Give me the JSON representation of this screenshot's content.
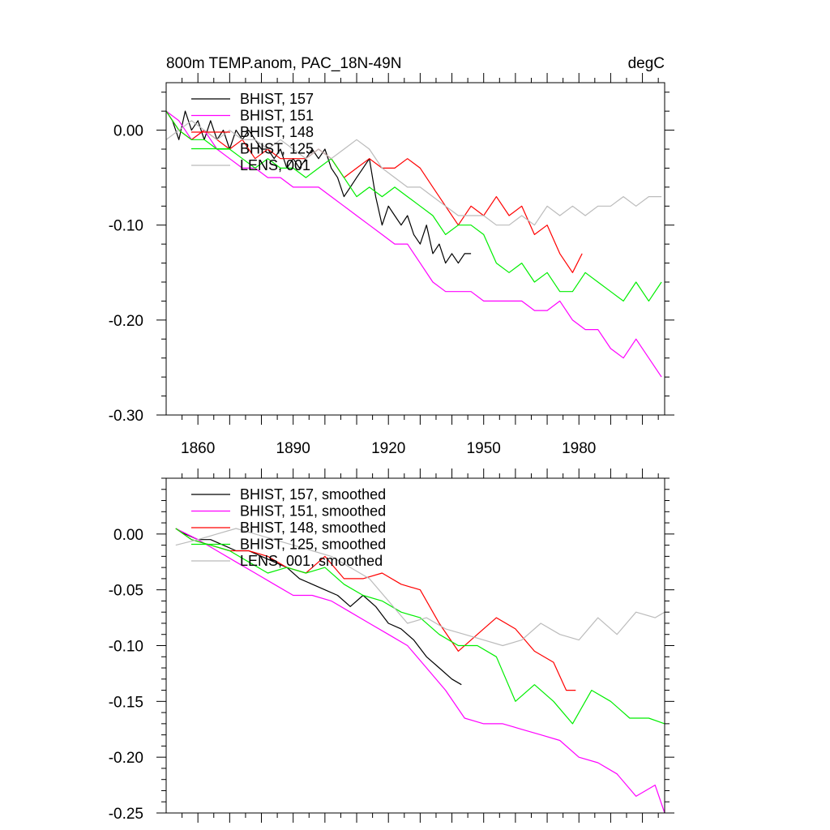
{
  "chart_data": [
    {
      "type": "line",
      "title": "800m TEMP.anom, PAC_18N-49N",
      "units": "degC",
      "xlim": [
        1850,
        2007
      ],
      "ylim": [
        -0.3,
        0.05
      ],
      "yticks": [
        0.0,
        -0.1,
        -0.2,
        -0.3
      ],
      "ytick_labels": [
        "0.00",
        "-0.10",
        "-0.20",
        "-0.30"
      ],
      "xticks": [
        1860,
        1890,
        1920,
        1950,
        1980
      ],
      "xtick_labels": [
        "1860",
        "1890",
        "1920",
        "1950",
        "1980"
      ],
      "legend": "top-left",
      "grid": false,
      "series": [
        {
          "name": "BHIST, 157",
          "color": "#000000",
          "x": [
            1850,
            1852,
            1854,
            1856,
            1858,
            1860,
            1862,
            1864,
            1866,
            1868,
            1870,
            1872,
            1874,
            1876,
            1878,
            1880,
            1882,
            1884,
            1886,
            1888,
            1890,
            1892,
            1894,
            1896,
            1898,
            1900,
            1902,
            1904,
            1906,
            1908,
            1910,
            1912,
            1914,
            1916,
            1918,
            1920,
            1922,
            1924,
            1926,
            1928,
            1930,
            1932,
            1934,
            1936,
            1938,
            1940,
            1942,
            1944,
            1946
          ],
          "y": [
            0.02,
            0.01,
            -0.01,
            0.02,
            0.0,
            0.01,
            -0.01,
            0.01,
            -0.01,
            0.0,
            -0.02,
            0.0,
            -0.01,
            0.0,
            -0.01,
            -0.02,
            -0.02,
            -0.03,
            -0.02,
            -0.04,
            -0.03,
            -0.04,
            -0.03,
            -0.02,
            -0.03,
            -0.02,
            -0.04,
            -0.05,
            -0.07,
            -0.06,
            -0.05,
            -0.04,
            -0.03,
            -0.07,
            -0.1,
            -0.08,
            -0.09,
            -0.1,
            -0.09,
            -0.11,
            -0.12,
            -0.1,
            -0.13,
            -0.12,
            -0.14,
            -0.13,
            -0.14,
            -0.13,
            -0.13
          ]
        },
        {
          "name": "BHIST, 151",
          "color": "#ff00ff",
          "x": [
            1850,
            1854,
            1858,
            1862,
            1866,
            1870,
            1874,
            1878,
            1882,
            1886,
            1890,
            1894,
            1898,
            1902,
            1906,
            1910,
            1914,
            1918,
            1922,
            1926,
            1930,
            1934,
            1938,
            1942,
            1946,
            1950,
            1954,
            1958,
            1962,
            1966,
            1970,
            1974,
            1978,
            1982,
            1986,
            1990,
            1994,
            1998,
            2002,
            2006
          ],
          "y": [
            0.02,
            0.01,
            -0.01,
            0.0,
            -0.02,
            -0.03,
            -0.04,
            -0.04,
            -0.05,
            -0.05,
            -0.06,
            -0.06,
            -0.06,
            -0.07,
            -0.08,
            -0.09,
            -0.1,
            -0.11,
            -0.12,
            -0.12,
            -0.14,
            -0.16,
            -0.17,
            -0.17,
            -0.17,
            -0.18,
            -0.18,
            -0.18,
            -0.18,
            -0.19,
            -0.19,
            -0.18,
            -0.2,
            -0.21,
            -0.21,
            -0.23,
            -0.24,
            -0.22,
            -0.24,
            -0.26
          ]
        },
        {
          "name": "BHIST, 148",
          "color": "#ff0000",
          "x": [
            1850,
            1854,
            1858,
            1862,
            1866,
            1870,
            1874,
            1878,
            1882,
            1886,
            1890,
            1894,
            1898,
            1902,
            1906,
            1910,
            1914,
            1918,
            1922,
            1926,
            1930,
            1934,
            1938,
            1942,
            1946,
            1950,
            1954,
            1958,
            1962,
            1966,
            1970,
            1974,
            1978,
            1981
          ],
          "y": [
            0.02,
            0.0,
            -0.01,
            0.0,
            -0.01,
            -0.02,
            -0.01,
            -0.03,
            -0.02,
            -0.03,
            -0.03,
            -0.03,
            -0.02,
            -0.03,
            -0.05,
            -0.04,
            -0.03,
            -0.04,
            -0.04,
            -0.03,
            -0.04,
            -0.06,
            -0.08,
            -0.1,
            -0.08,
            -0.09,
            -0.07,
            -0.09,
            -0.08,
            -0.11,
            -0.1,
            -0.13,
            -0.15,
            -0.13
          ]
        },
        {
          "name": "BHIST, 125",
          "color": "#00ee00",
          "x": [
            1850,
            1854,
            1858,
            1862,
            1866,
            1870,
            1874,
            1878,
            1882,
            1886,
            1890,
            1894,
            1898,
            1902,
            1906,
            1910,
            1914,
            1918,
            1922,
            1926,
            1930,
            1934,
            1938,
            1942,
            1946,
            1950,
            1954,
            1958,
            1962,
            1966,
            1970,
            1974,
            1978,
            1982,
            1986,
            1990,
            1994,
            1998,
            2002,
            2006
          ],
          "y": [
            0.02,
            0.0,
            -0.01,
            -0.01,
            -0.02,
            -0.02,
            -0.03,
            -0.04,
            -0.03,
            -0.04,
            -0.04,
            -0.05,
            -0.04,
            -0.03,
            -0.05,
            -0.07,
            -0.06,
            -0.07,
            -0.06,
            -0.07,
            -0.08,
            -0.09,
            -0.11,
            -0.1,
            -0.1,
            -0.11,
            -0.14,
            -0.15,
            -0.14,
            -0.16,
            -0.15,
            -0.17,
            -0.17,
            -0.15,
            -0.16,
            -0.17,
            -0.18,
            -0.16,
            -0.18,
            -0.16
          ]
        },
        {
          "name": "LENS, 001",
          "color": "#bbbbbb",
          "x": [
            1850,
            1854,
            1858,
            1862,
            1866,
            1870,
            1874,
            1878,
            1882,
            1886,
            1890,
            1894,
            1898,
            1902,
            1906,
            1910,
            1914,
            1918,
            1922,
            1926,
            1930,
            1934,
            1938,
            1942,
            1946,
            1950,
            1954,
            1958,
            1962,
            1966,
            1970,
            1974,
            1978,
            1982,
            1986,
            1990,
            1994,
            1998,
            2002,
            2006
          ],
          "y": [
            -0.01,
            0.0,
            0.01,
            0.0,
            -0.01,
            0.0,
            -0.01,
            -0.01,
            -0.02,
            -0.01,
            -0.02,
            -0.03,
            -0.02,
            -0.03,
            -0.02,
            -0.01,
            -0.02,
            -0.04,
            -0.05,
            -0.06,
            -0.06,
            -0.07,
            -0.08,
            -0.09,
            -0.09,
            -0.09,
            -0.1,
            -0.1,
            -0.09,
            -0.1,
            -0.08,
            -0.09,
            -0.08,
            -0.09,
            -0.08,
            -0.08,
            -0.07,
            -0.08,
            -0.07,
            -0.07
          ]
        }
      ]
    },
    {
      "type": "line",
      "xlim": [
        1850,
        2007
      ],
      "ylim": [
        -0.25,
        0.05
      ],
      "yticks": [
        0.0,
        -0.05,
        -0.1,
        -0.15,
        -0.2,
        -0.25
      ],
      "ytick_labels": [
        "0.00",
        "-0.05",
        "-0.10",
        "-0.15",
        "-0.20",
        "-0.25"
      ],
      "legend": "top-left",
      "grid": false,
      "series": [
        {
          "name": "BHIST, 157, smoothed",
          "color": "#000000",
          "x": [
            1853,
            1856,
            1860,
            1864,
            1868,
            1872,
            1876,
            1880,
            1884,
            1888,
            1892,
            1896,
            1900,
            1904,
            1908,
            1912,
            1916,
            1920,
            1924,
            1928,
            1932,
            1936,
            1940,
            1943
          ],
          "y": [
            0.005,
            0.0,
            -0.005,
            -0.005,
            -0.01,
            -0.015,
            -0.015,
            -0.02,
            -0.025,
            -0.03,
            -0.04,
            -0.045,
            -0.05,
            -0.055,
            -0.065,
            -0.055,
            -0.065,
            -0.08,
            -0.085,
            -0.095,
            -0.11,
            -0.12,
            -0.13,
            -0.135
          ]
        },
        {
          "name": "BHIST, 151, smoothed",
          "color": "#ff00ff",
          "x": [
            1853,
            1860,
            1866,
            1872,
            1878,
            1884,
            1890,
            1896,
            1902,
            1908,
            1914,
            1920,
            1926,
            1932,
            1938,
            1944,
            1950,
            1956,
            1962,
            1968,
            1974,
            1980,
            1986,
            1992,
            1998,
            2004,
            2007
          ],
          "y": [
            0.005,
            -0.005,
            -0.015,
            -0.025,
            -0.035,
            -0.045,
            -0.055,
            -0.055,
            -0.06,
            -0.07,
            -0.08,
            -0.09,
            -0.1,
            -0.12,
            -0.14,
            -0.165,
            -0.17,
            -0.17,
            -0.175,
            -0.18,
            -0.185,
            -0.2,
            -0.205,
            -0.215,
            -0.235,
            -0.225,
            -0.25
          ]
        },
        {
          "name": "BHIST, 148, smoothed",
          "color": "#ff0000",
          "x": [
            1853,
            1858,
            1864,
            1870,
            1876,
            1882,
            1888,
            1894,
            1900,
            1906,
            1912,
            1918,
            1924,
            1930,
            1936,
            1942,
            1948,
            1954,
            1960,
            1966,
            1972,
            1976,
            1979
          ],
          "y": [
            0.005,
            -0.005,
            -0.01,
            -0.015,
            -0.015,
            -0.02,
            -0.03,
            -0.035,
            -0.02,
            -0.04,
            -0.04,
            -0.035,
            -0.045,
            -0.05,
            -0.08,
            -0.105,
            -0.09,
            -0.075,
            -0.085,
            -0.105,
            -0.115,
            -0.14,
            -0.14
          ]
        },
        {
          "name": "BHIST, 125, smoothed",
          "color": "#00ee00",
          "x": [
            1853,
            1858,
            1864,
            1870,
            1876,
            1882,
            1888,
            1894,
            1900,
            1906,
            1912,
            1918,
            1924,
            1930,
            1936,
            1942,
            1948,
            1954,
            1960,
            1966,
            1972,
            1978,
            1984,
            1990,
            1996,
            2002,
            2007
          ],
          "y": [
            0.005,
            -0.005,
            -0.01,
            -0.015,
            -0.025,
            -0.035,
            -0.03,
            -0.035,
            -0.03,
            -0.045,
            -0.055,
            -0.06,
            -0.07,
            -0.075,
            -0.09,
            -0.1,
            -0.1,
            -0.11,
            -0.15,
            -0.135,
            -0.15,
            -0.17,
            -0.14,
            -0.15,
            -0.165,
            -0.165,
            -0.17
          ]
        },
        {
          "name": "LENS, 001, smoothed",
          "color": "#bbbbbb",
          "x": [
            1853,
            1860,
            1866,
            1872,
            1878,
            1884,
            1890,
            1896,
            1902,
            1908,
            1914,
            1920,
            1926,
            1932,
            1938,
            1944,
            1950,
            1956,
            1962,
            1968,
            1974,
            1980,
            1986,
            1992,
            1998,
            2004,
            2007
          ],
          "y": [
            -0.01,
            -0.005,
            0.0,
            0.005,
            0.0,
            -0.005,
            -0.01,
            -0.015,
            -0.02,
            -0.03,
            -0.04,
            -0.06,
            -0.08,
            -0.075,
            -0.085,
            -0.09,
            -0.095,
            -0.1,
            -0.095,
            -0.08,
            -0.09,
            -0.095,
            -0.075,
            -0.09,
            -0.07,
            -0.075,
            -0.07
          ]
        }
      ]
    }
  ]
}
